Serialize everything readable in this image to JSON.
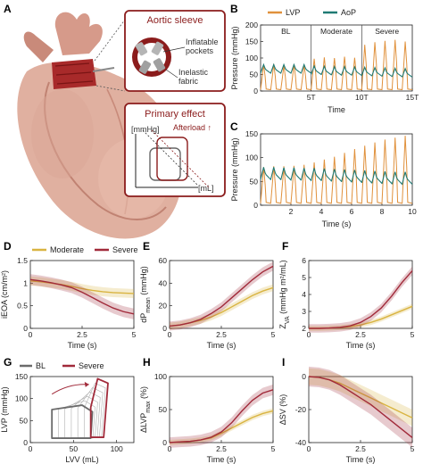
{
  "colors": {
    "lvp": "#e0913c",
    "aop": "#1f7a74",
    "moderate": "#d9b441",
    "severe": "#a12a3a",
    "bl": "#6b6b6b",
    "box": "#8b1c1c"
  },
  "panels": {
    "A": "A",
    "B": "B",
    "C": "C",
    "D": "D",
    "E": "E",
    "F": "F",
    "G": "G",
    "H": "H",
    "I": "I"
  },
  "schematic": {
    "sleeve_title": "Aortic sleeve",
    "inflatable_label": "Inflatable\npockets",
    "inelastic_label": "Inelastic\nfabric",
    "effect_title": "Primary effect",
    "yunit": "[mmHg]",
    "xunit": "[mL]",
    "afterload": "Afterload ↑"
  },
  "legends": {
    "B": [
      {
        "name": "LVP",
        "color": "#e0913c"
      },
      {
        "name": "AoP",
        "color": "#1f7a74"
      }
    ],
    "D": [
      {
        "name": "Moderate",
        "color": "#d9b441"
      },
      {
        "name": "Severe",
        "color": "#a12a3a"
      }
    ],
    "G": [
      {
        "name": "BL",
        "color": "#6b6b6b"
      },
      {
        "name": "Severe",
        "color": "#a12a3a"
      }
    ]
  },
  "chart_data": [
    {
      "id": "B",
      "type": "line",
      "xlabel": "Time",
      "ylabel": "Pressure (mmHg)",
      "ylim": [
        0,
        200
      ],
      "yticks": [
        0,
        50,
        100,
        150,
        200
      ],
      "xticks": [
        "5T",
        "10T",
        "15T"
      ],
      "regions": [
        "BL",
        "Moderate",
        "Severe"
      ],
      "region_bounds": [
        0,
        5,
        10,
        15
      ],
      "series": [
        {
          "name": "LVP",
          "peaks": [
            80,
            82,
            78,
            81,
            80,
            98,
            102,
            100,
            104,
            101,
            140,
            148,
            152,
            155,
            150
          ]
        },
        {
          "name": "AoP",
          "mean": [
            62,
            62,
            62,
            62,
            62,
            58,
            57,
            56,
            56,
            55,
            54,
            53,
            52,
            51,
            50
          ]
        }
      ]
    },
    {
      "id": "C",
      "type": "line",
      "xlabel": "Time (s)",
      "ylabel": "Pressure (mmHg)",
      "ylim": [
        0,
        150
      ],
      "yticks": [
        0,
        50,
        100,
        150
      ],
      "xlim": [
        0,
        10
      ],
      "xticks": [
        2,
        4,
        6,
        8,
        10
      ],
      "series": [
        {
          "name": "LVP",
          "peaks": [
            80,
            82,
            82,
            83,
            85,
            90,
            96,
            102,
            110,
            118,
            125,
            132,
            138,
            142,
            146
          ]
        },
        {
          "name": "AoP",
          "mean": [
            62,
            62,
            61,
            61,
            60,
            60,
            59,
            58,
            57,
            56,
            55,
            54,
            53,
            52,
            52
          ]
        }
      ]
    },
    {
      "id": "D",
      "type": "line",
      "xlabel": "Time (s)",
      "ylabel": "iEOA (cm/m²)",
      "ylim": [
        0,
        1.5
      ],
      "yticks": [
        0,
        0.5,
        1,
        1.5
      ],
      "xticks": [
        0,
        2.5,
        5
      ],
      "x": [
        0,
        0.5,
        1,
        1.5,
        2,
        2.5,
        3,
        3.5,
        4,
        4.5,
        5
      ],
      "series": [
        {
          "name": "Moderate",
          "values": [
            1.05,
            1.03,
            1.0,
            0.97,
            0.93,
            0.88,
            0.84,
            0.81,
            0.79,
            0.78,
            0.77
          ],
          "band": 0.1
        },
        {
          "name": "Severe",
          "values": [
            1.08,
            1.05,
            1.01,
            0.96,
            0.9,
            0.8,
            0.68,
            0.56,
            0.45,
            0.37,
            0.32
          ],
          "band": 0.12
        }
      ]
    },
    {
      "id": "E",
      "type": "line",
      "xlabel": "Time (s)",
      "ylabel": "dP",
      "ylabel_sub": "mean",
      "ylabel_unit": "(mmHg)",
      "ylim": [
        0,
        60
      ],
      "yticks": [
        0,
        20,
        40,
        60
      ],
      "xticks": [
        0,
        2.5,
        5
      ],
      "x": [
        0,
        0.5,
        1,
        1.5,
        2,
        2.5,
        3,
        3.5,
        4,
        4.5,
        5
      ],
      "series": [
        {
          "name": "Moderate",
          "values": [
            2,
            3,
            5,
            7,
            10,
            14,
            19,
            24,
            29,
            33,
            36
          ],
          "band": 3
        },
        {
          "name": "Severe",
          "values": [
            2,
            3,
            5,
            8,
            13,
            19,
            27,
            35,
            43,
            50,
            55
          ],
          "band": 4
        }
      ]
    },
    {
      "id": "F",
      "type": "line",
      "xlabel": "Time (s)",
      "ylabel": "Z",
      "ylabel_sub": "VA",
      "ylabel_unit": "(mmHg m²/mL)",
      "ylim": [
        2,
        6
      ],
      "yticks": [
        2,
        3,
        4,
        5,
        6
      ],
      "xticks": [
        0,
        2.5,
        5
      ],
      "x": [
        0,
        0.5,
        1,
        1.5,
        2,
        2.5,
        3,
        3.5,
        4,
        4.5,
        5
      ],
      "series": [
        {
          "name": "Moderate",
          "values": [
            2,
            2,
            2.02,
            2.05,
            2.1,
            2.2,
            2.35,
            2.55,
            2.8,
            3.05,
            3.3
          ],
          "band": 0.15
        },
        {
          "name": "Severe",
          "values": [
            2,
            2,
            2.02,
            2.06,
            2.15,
            2.35,
            2.7,
            3.2,
            3.9,
            4.7,
            5.4
          ],
          "band": 0.25
        }
      ]
    },
    {
      "id": "G",
      "type": "line",
      "xlabel": "LVV (mL)",
      "ylabel": "LVP (mmHg)",
      "ylim": [
        0,
        150
      ],
      "yticks": [
        0,
        50,
        100,
        150
      ],
      "xlim": [
        0,
        120
      ],
      "xticks": [
        0,
        50,
        100
      ],
      "series": [
        {
          "name": "BL",
          "loop": [
            [
              25,
              10
            ],
            [
              70,
              10
            ],
            [
              72,
              70
            ],
            [
              60,
              85
            ],
            [
              25,
              75
            ]
          ]
        },
        {
          "name": "Severe",
          "loop": [
            [
              70,
              12
            ],
            [
              85,
              12
            ],
            [
              90,
              135
            ],
            [
              78,
              145
            ],
            [
              70,
              80
            ]
          ]
        }
      ]
    },
    {
      "id": "H",
      "type": "line",
      "xlabel": "Time (s)",
      "ylabel": "ΔLVP",
      "ylabel_sub": "max",
      "ylabel_unit": "(%)",
      "ylim": [
        0,
        100
      ],
      "yticks": [
        0,
        50,
        100
      ],
      "xticks": [
        0,
        2.5,
        5
      ],
      "x": [
        0,
        0.5,
        1,
        1.5,
        2,
        2.5,
        3,
        3.5,
        4,
        4.5,
        5
      ],
      "series": [
        {
          "name": "Moderate",
          "values": [
            0,
            1,
            2,
            4,
            7,
            14,
            22,
            30,
            38,
            44,
            48
          ],
          "band": 4
        },
        {
          "name": "Severe",
          "values": [
            0,
            1,
            2,
            4,
            8,
            16,
            30,
            48,
            64,
            75,
            80
          ],
          "band": 8
        }
      ]
    },
    {
      "id": "I",
      "type": "line",
      "xlabel": "Time (s)",
      "ylabel": "ΔSV (%)",
      "ylim": [
        -40,
        0
      ],
      "yticks": [
        -40,
        -20,
        0
      ],
      "xticks": [
        0,
        2.5,
        5
      ],
      "x": [
        0,
        0.5,
        1,
        1.5,
        2,
        2.5,
        3,
        3.5,
        4,
        4.5,
        5
      ],
      "series": [
        {
          "name": "Moderate",
          "values": [
            0,
            -0.5,
            -2,
            -4,
            -7,
            -10,
            -13,
            -16,
            -19,
            -22,
            -25
          ],
          "band": 5
        },
        {
          "name": "Severe",
          "values": [
            0,
            -0.5,
            -2,
            -5,
            -9,
            -13,
            -17,
            -22,
            -27,
            -32,
            -37
          ],
          "band": 6
        }
      ]
    }
  ]
}
